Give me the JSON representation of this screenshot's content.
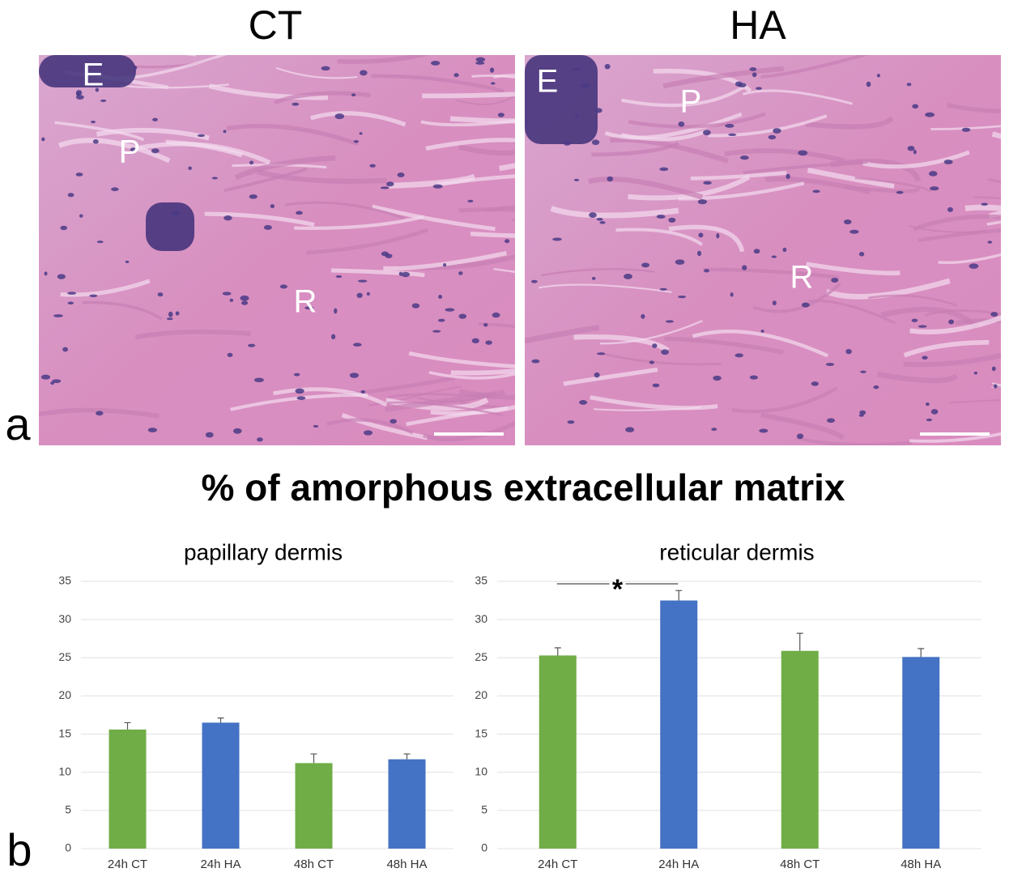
{
  "panel_a": {
    "label": "a",
    "images": [
      {
        "title": "CT",
        "labels": [
          "E",
          "P",
          "R"
        ]
      },
      {
        "title": "HA",
        "labels": [
          "E",
          "P",
          "R"
        ]
      }
    ]
  },
  "title": "% of amorphous extracellular matrix",
  "panel_b_label": "b",
  "chart_data": [
    {
      "type": "bar",
      "title": "papillary dermis",
      "categories": [
        "24h CT",
        "24h HA",
        "48h CT",
        "48h HA"
      ],
      "values": [
        15.6,
        16.5,
        11.2,
        11.7
      ],
      "errors": [
        0.9,
        0.6,
        1.2,
        0.7
      ],
      "colors": [
        "#70ad47",
        "#4472c4",
        "#70ad47",
        "#4472c4"
      ],
      "ylim": [
        0,
        35
      ],
      "yticks": [
        0,
        5,
        10,
        15,
        20,
        25,
        30,
        35
      ],
      "grid": true
    },
    {
      "type": "bar",
      "title": "reticular dermis",
      "categories": [
        "24h CT",
        "24h HA",
        "48h CT",
        "48h HA"
      ],
      "values": [
        25.3,
        32.5,
        25.9,
        25.1
      ],
      "errors": [
        1.0,
        1.3,
        2.3,
        1.1
      ],
      "colors": [
        "#70ad47",
        "#4472c4",
        "#70ad47",
        "#4472c4"
      ],
      "ylim": [
        0,
        35
      ],
      "yticks": [
        0,
        5,
        10,
        15,
        20,
        25,
        30,
        35
      ],
      "grid": true,
      "annotation": "*"
    }
  ]
}
